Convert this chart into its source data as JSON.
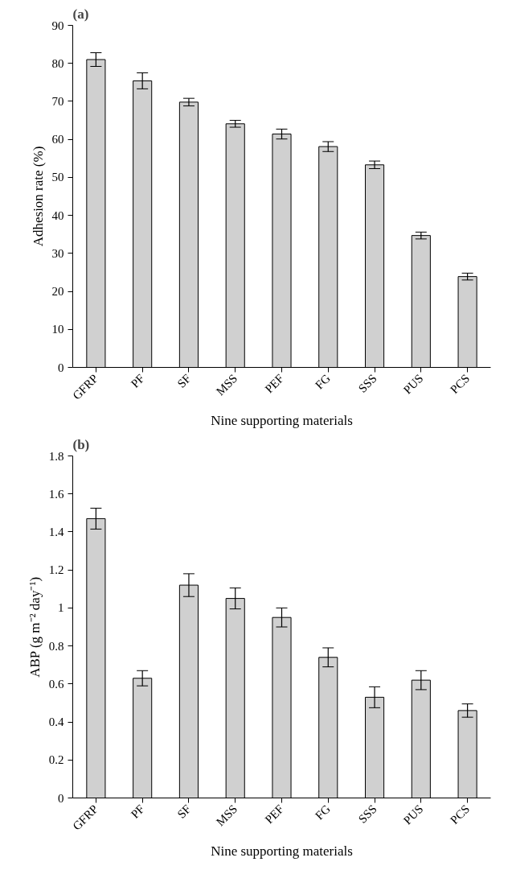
{
  "chart_data": [
    {
      "type": "bar",
      "title": "(a)",
      "xlabel": "Nine supporting materials",
      "ylabel": "Adhesion rate (%)",
      "categories": [
        "GFRP",
        "PF",
        "SF",
        "MSS",
        "PEF",
        "FG",
        "SSS",
        "PUS",
        "PCS"
      ],
      "values": [
        81,
        75.4,
        69.8,
        64.1,
        61.4,
        58.1,
        53.3,
        34.7,
        23.9
      ],
      "errors": [
        1.8,
        2.1,
        1.0,
        0.9,
        1.3,
        1.3,
        1.0,
        0.9,
        0.9
      ],
      "color": "#d0d0d0",
      "ylim": [
        0,
        90
      ],
      "yticks": [
        0,
        10,
        20,
        30,
        40,
        50,
        60,
        70,
        80,
        90
      ],
      "grid": false
    },
    {
      "type": "bar",
      "title": "(b)",
      "xlabel": "Nine supporting materials",
      "ylabel": "ABP (g m⁻² day⁻¹)",
      "categories": [
        "GFRP",
        "PF",
        "SF",
        "MSS",
        "PEF",
        "FG",
        "SSS",
        "PUS",
        "PCS"
      ],
      "values": [
        1.47,
        0.63,
        1.12,
        1.05,
        0.95,
        0.74,
        0.53,
        0.62,
        0.46
      ],
      "errors": [
        0.055,
        0.04,
        0.06,
        0.055,
        0.05,
        0.05,
        0.055,
        0.05,
        0.035
      ],
      "color": "#d0d0d0",
      "ylim": [
        0,
        1.8
      ],
      "yticks": [
        0,
        0.2,
        0.4,
        0.6,
        0.8,
        1,
        1.2,
        1.4,
        1.6,
        1.8
      ],
      "grid": false
    }
  ]
}
